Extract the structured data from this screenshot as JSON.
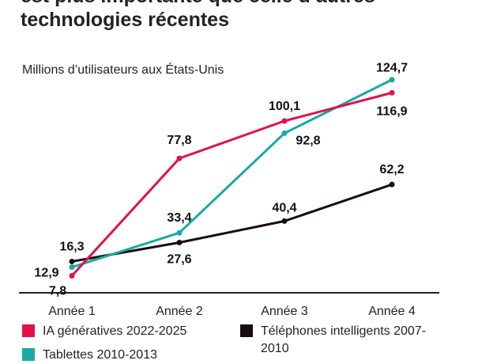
{
  "title_lines": [
    "est plus importante que celle d’autres",
    "technologies récentes"
  ],
  "chart_data": {
    "type": "line",
    "subtitle": "Millions d’utilisateurs aux États-Unis",
    "categories": [
      "Année 1",
      "Année 2",
      "Année 3",
      "Année 4"
    ],
    "series": [
      {
        "name": "IA génératives 2022-2025",
        "color": "#e3104a",
        "values": [
          7.8,
          77.8,
          100.1,
          116.9
        ],
        "labels": [
          "7,8",
          "77,8",
          "100,1",
          "116,9"
        ]
      },
      {
        "name": "Tablettes 2010-2013",
        "color": "#1aa8a8",
        "values": [
          12.9,
          33.4,
          92.8,
          124.7
        ],
        "labels": [
          "12,9",
          "33,4",
          "92,8",
          "124,7"
        ]
      },
      {
        "name": "Téléphones intelligents 2007-2010",
        "color": "#1a0a12",
        "values": [
          16.3,
          27.6,
          40.4,
          62.2
        ],
        "labels": [
          "16,3",
          "27,6",
          "40,4",
          "62,2"
        ]
      }
    ],
    "ylim": [
      0,
      130
    ],
    "grid": false,
    "legend_position": "bottom"
  }
}
